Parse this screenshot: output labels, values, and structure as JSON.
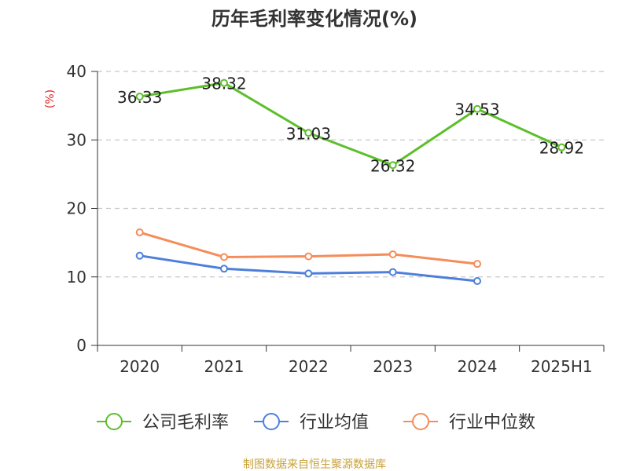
{
  "chart_data": {
    "type": "line",
    "title": "历年毛利率变化情况(%)",
    "unit_label": "(%)",
    "categories": [
      "2020",
      "2021",
      "2022",
      "2023",
      "2024",
      "2025H1"
    ],
    "ylim": [
      0,
      40
    ],
    "yticks": [
      0,
      10,
      20,
      30,
      40
    ],
    "grid": true,
    "legend_position": "bottom",
    "series": [
      {
        "name": "公司毛利率",
        "color": "#5cbf2a",
        "values": [
          36.33,
          38.32,
          31.03,
          26.32,
          34.53,
          28.92
        ],
        "labels": [
          "36.33",
          "38.32",
          "31.03",
          "26.32",
          "34.53",
          "28.92"
        ]
      },
      {
        "name": "行业均值",
        "color": "#4e7fdc",
        "values": [
          13.1,
          11.2,
          10.5,
          10.7,
          9.4,
          null
        ]
      },
      {
        "name": "行业中位数",
        "color": "#f58d5a",
        "values": [
          16.5,
          12.9,
          13.0,
          13.3,
          11.9,
          null
        ]
      }
    ],
    "source": "制图数据来自恒生聚源数据库"
  }
}
